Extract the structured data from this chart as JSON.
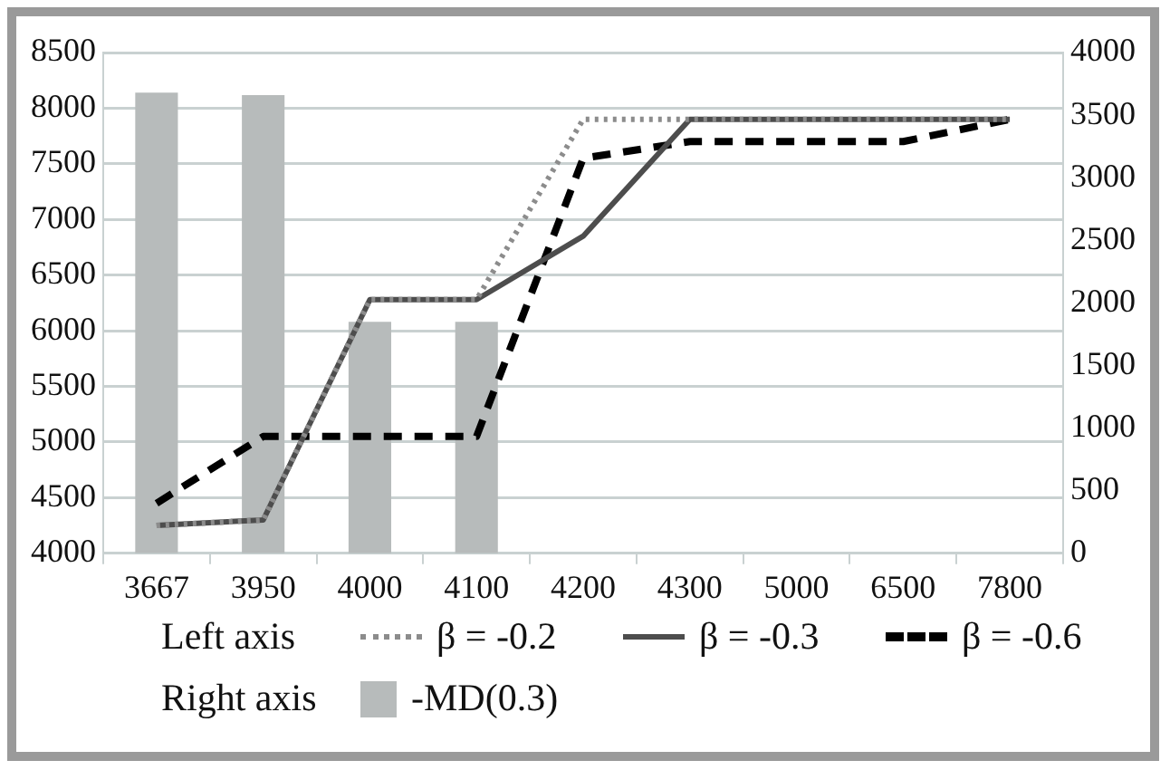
{
  "chart_data": {
    "type": "line",
    "categories": [
      "3667",
      "3950",
      "4000",
      "4100",
      "4200",
      "4300",
      "5000",
      "6500",
      "7800"
    ],
    "series": [
      {
        "name": "β = -0.2",
        "color": "#8c8c8c",
        "line_style": "dotted",
        "values": [
          4250,
          4300,
          6280,
          6280,
          7900,
          7900,
          7900,
          7900,
          7900
        ]
      },
      {
        "name": "β = -0.3",
        "color": "#4d4d4d",
        "line_style": "solid",
        "values": [
          4250,
          4300,
          6280,
          6280,
          6850,
          7900,
          7900,
          7900,
          7900
        ]
      },
      {
        "name": "β = -0.6",
        "color": "#000000",
        "line_style": "dashed",
        "values": [
          4450,
          5050,
          5050,
          5050,
          7550,
          7700,
          7700,
          7700,
          7900
        ]
      },
      {
        "name": "-MD(0.3)",
        "type": "bar",
        "axis": "y2",
        "color": "#b7bbbb",
        "values": [
          3680,
          3660,
          1850,
          1850,
          null,
          null,
          null,
          null,
          null
        ]
      }
    ],
    "ylim": [
      4000,
      8500
    ],
    "yticks": [
      4000,
      4500,
      5000,
      5500,
      6000,
      6500,
      7000,
      7500,
      8000,
      8500
    ],
    "y2lim": [
      0,
      4000
    ],
    "y2ticks": [
      0,
      500,
      1000,
      1500,
      2000,
      2500,
      3000,
      3500,
      4000
    ],
    "annotations": [
      "Left axis",
      "Right axis"
    ],
    "grid": "y",
    "legend": "bottom",
    "marker": "none"
  }
}
